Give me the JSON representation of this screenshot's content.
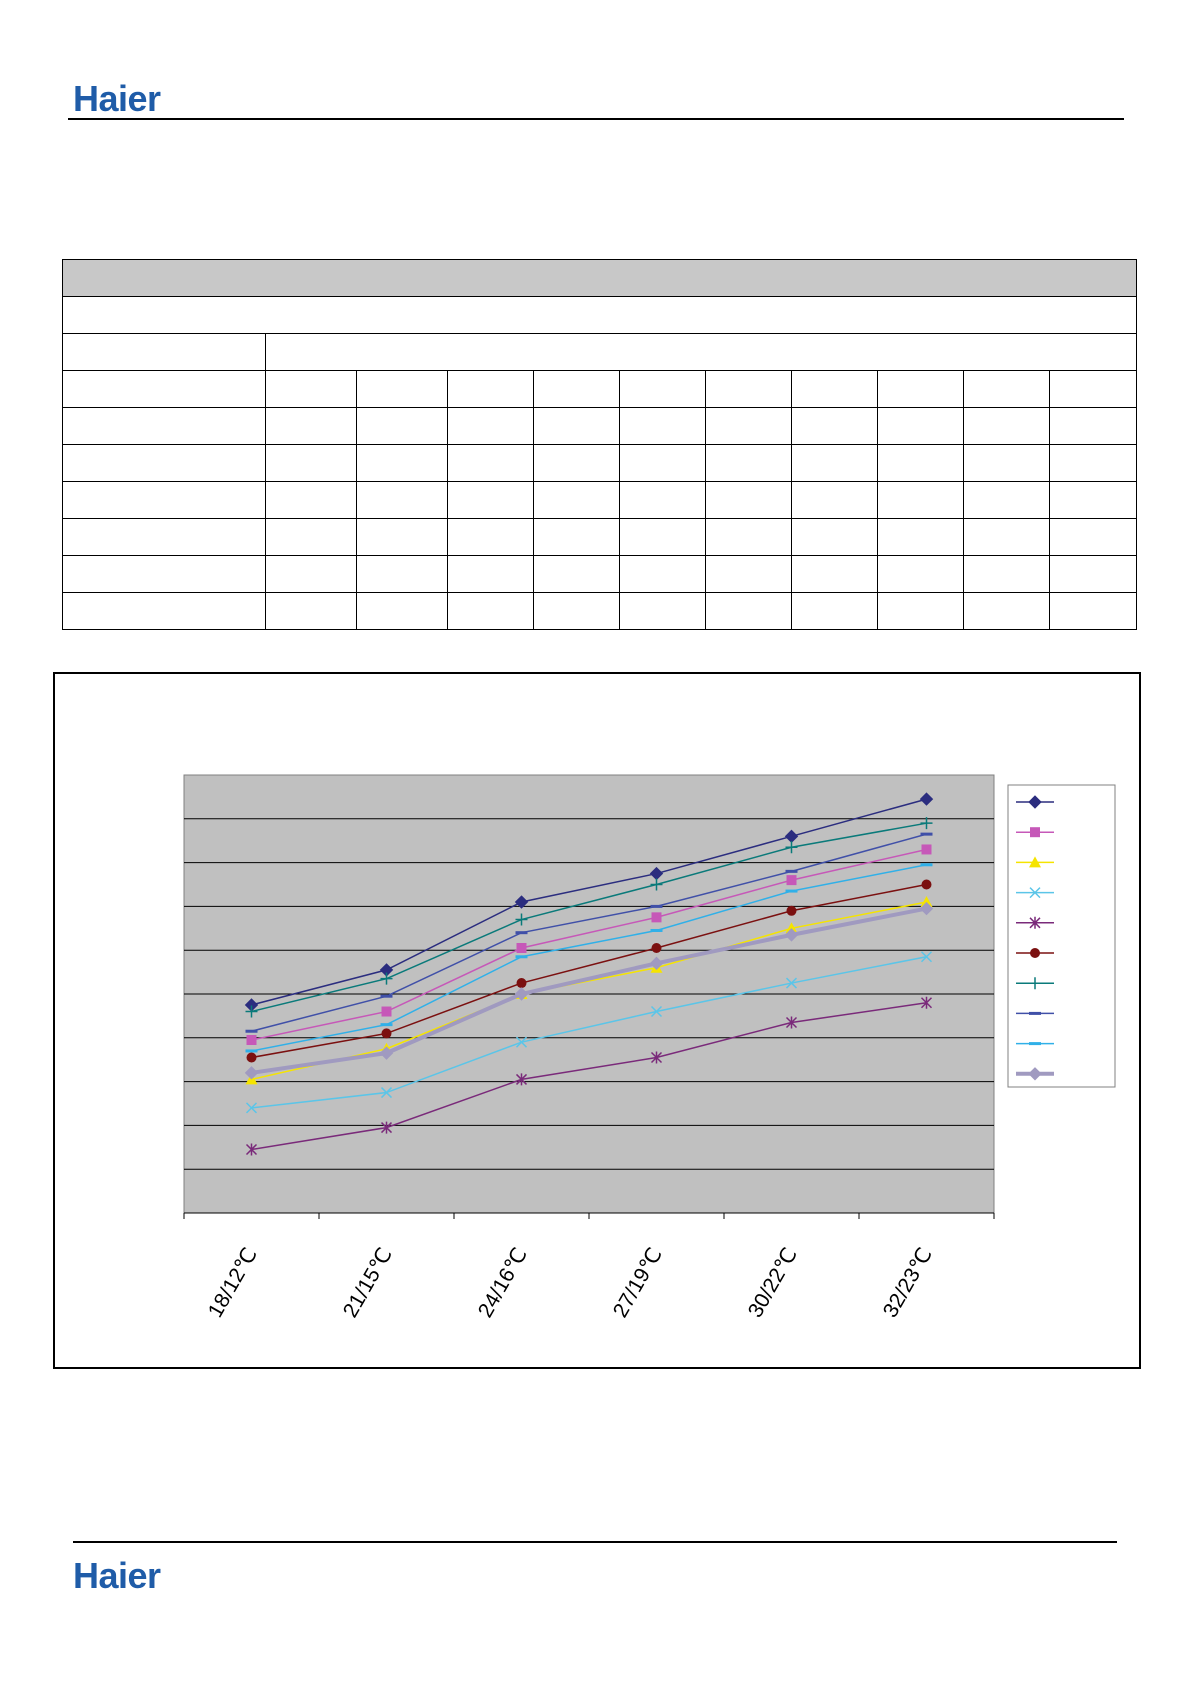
{
  "header": {
    "logo_text": "Haier"
  },
  "footer": {
    "logo_text": "Haier"
  },
  "colors": {
    "brand": "#1f5ca8",
    "plot_bg": "#c0c0c0"
  },
  "chart_data": {
    "type": "line",
    "title": "",
    "xlabel": "",
    "ylabel": "",
    "categories": [
      "18/12℃",
      "21/15℃",
      "24/16℃",
      "27/19℃",
      "30/22℃",
      "32/23℃"
    ],
    "ylim": [
      0,
      10
    ],
    "grid": true,
    "legend_position": "right",
    "series": [
      {
        "color": "#2b2d7f",
        "marker": "diamond",
        "values": [
          4.75,
          5.55,
          7.1,
          7.75,
          8.6,
          9.45
        ]
      },
      {
        "color": "#c658b8",
        "marker": "square",
        "values": [
          3.95,
          4.6,
          6.05,
          6.75,
          7.6,
          8.3
        ]
      },
      {
        "color": "#f5e400",
        "marker": "triangle",
        "values": [
          3.05,
          3.75,
          5.0,
          5.6,
          6.5,
          7.1
        ]
      },
      {
        "color": "#5bc5e8",
        "marker": "x",
        "values": [
          2.4,
          2.75,
          3.9,
          4.6,
          5.25,
          5.85
        ]
      },
      {
        "color": "#7a2a7a",
        "marker": "star",
        "values": [
          1.45,
          1.95,
          3.05,
          3.55,
          4.35,
          4.8
        ]
      },
      {
        "color": "#7b1010",
        "marker": "circle",
        "values": [
          3.55,
          4.1,
          5.25,
          6.05,
          6.9,
          7.5
        ]
      },
      {
        "color": "#0a7a7a",
        "marker": "plus",
        "values": [
          4.6,
          5.35,
          6.7,
          7.5,
          8.35,
          8.9
        ]
      },
      {
        "color": "#4050a8",
        "marker": "dash",
        "values": [
          4.15,
          4.95,
          6.4,
          7.0,
          7.8,
          8.65
        ]
      },
      {
        "color": "#30b0e8",
        "marker": "dash",
        "values": [
          3.7,
          4.3,
          5.85,
          6.45,
          7.35,
          7.95
        ]
      },
      {
        "color": "#a09ac0",
        "marker": "diamond",
        "values": [
          3.2,
          3.65,
          5.0,
          5.7,
          6.35,
          6.95
        ]
      }
    ]
  }
}
